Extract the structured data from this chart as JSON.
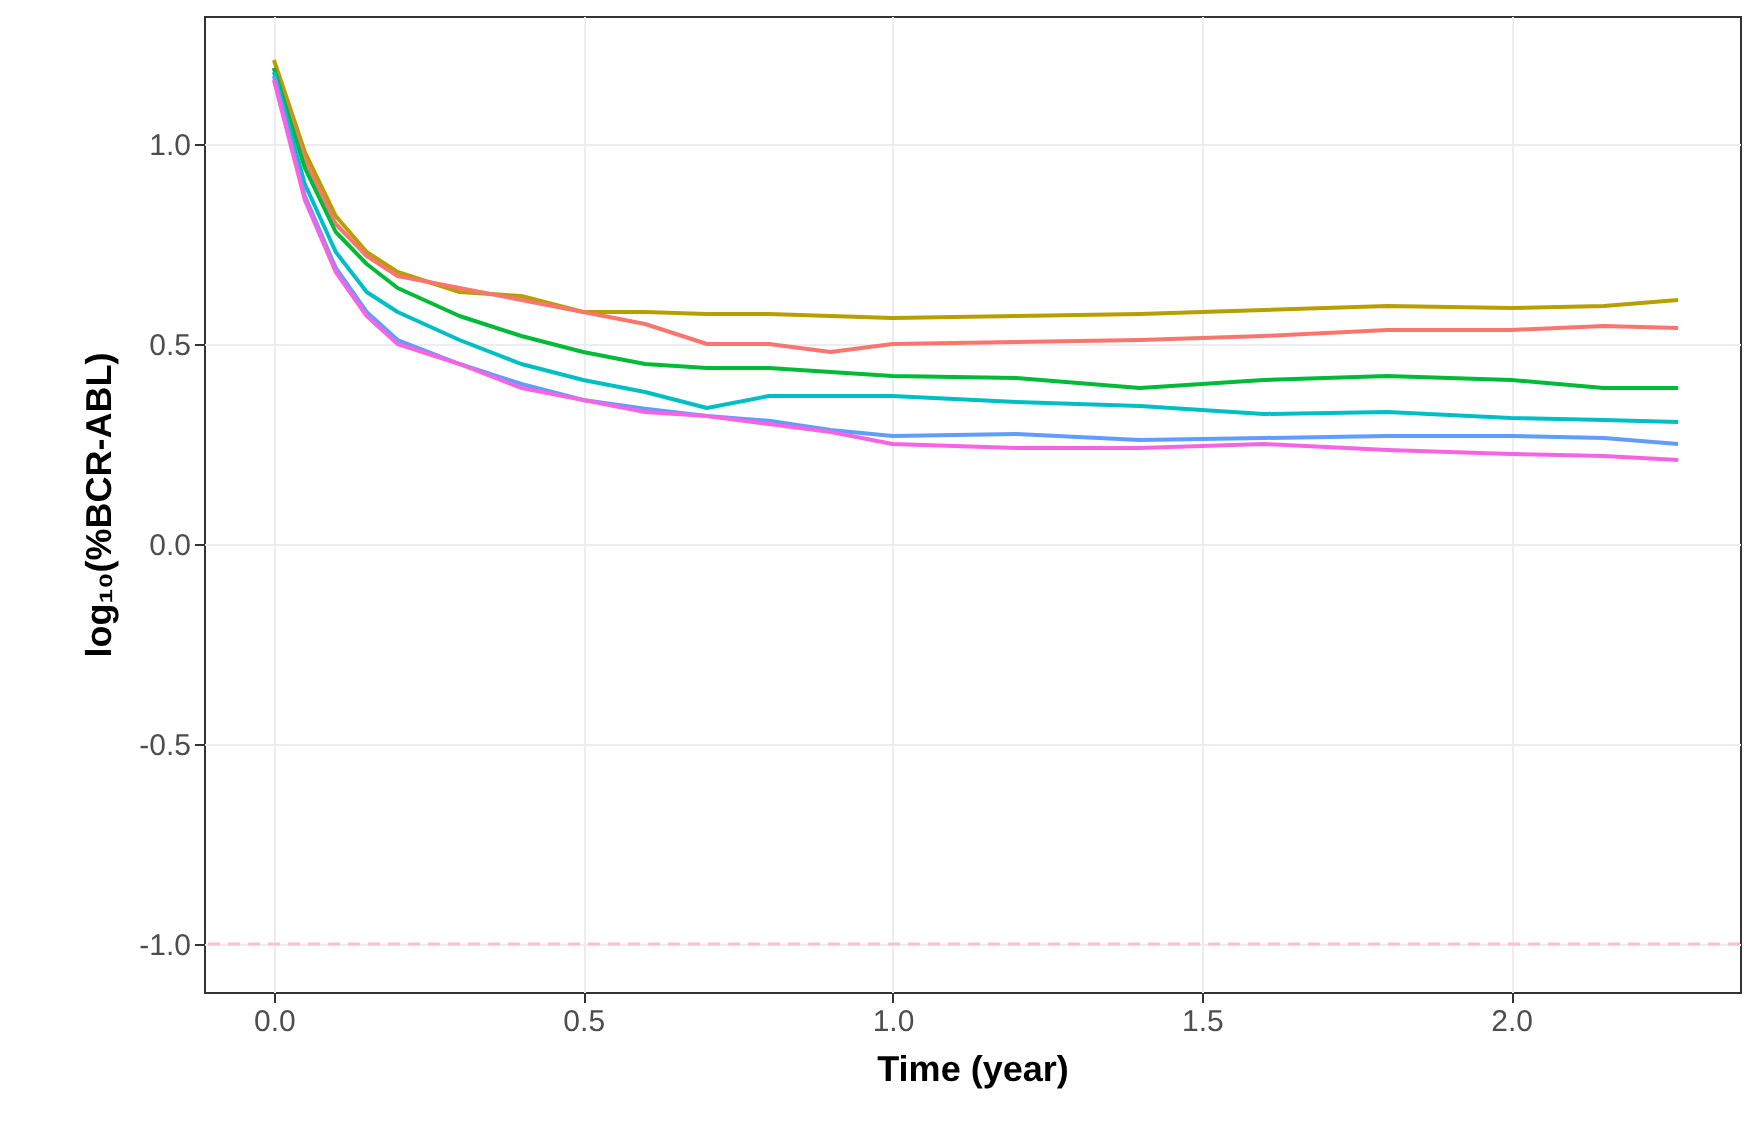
{
  "chart_data": {
    "type": "line",
    "xlabel": "Time (year)",
    "ylabel": "log₁₀(%BCR-ABL)",
    "x": [
      0,
      0.05,
      0.1,
      0.15,
      0.2,
      0.3,
      0.4,
      0.5,
      0.6,
      0.7,
      0.8,
      0.9,
      1.0,
      1.2,
      1.4,
      1.6,
      1.8,
      2.0,
      2.15,
      2.27
    ],
    "series": [
      {
        "color": "#b79f00",
        "values": [
          1.21,
          0.98,
          0.82,
          0.73,
          0.68,
          0.63,
          0.62,
          0.58,
          0.58,
          0.575,
          0.575,
          0.57,
          0.565,
          0.57,
          0.575,
          0.585,
          0.595,
          0.59,
          0.595,
          0.61
        ]
      },
      {
        "color": "#f8766d",
        "values": [
          1.19,
          0.96,
          0.8,
          0.72,
          0.67,
          0.64,
          0.61,
          0.58,
          0.55,
          0.5,
          0.5,
          0.48,
          0.5,
          0.505,
          0.51,
          0.52,
          0.535,
          0.535,
          0.545,
          0.54
        ]
      },
      {
        "color": "#00ba38",
        "values": [
          1.19,
          0.94,
          0.78,
          0.7,
          0.64,
          0.57,
          0.52,
          0.48,
          0.45,
          0.44,
          0.44,
          0.43,
          0.42,
          0.415,
          0.39,
          0.41,
          0.42,
          0.41,
          0.39,
          0.39
        ]
      },
      {
        "color": "#00bfc4",
        "values": [
          1.18,
          0.9,
          0.73,
          0.63,
          0.58,
          0.51,
          0.45,
          0.41,
          0.38,
          0.34,
          0.37,
          0.37,
          0.37,
          0.355,
          0.345,
          0.325,
          0.33,
          0.315,
          0.31,
          0.305
        ]
      },
      {
        "color": "#619cff",
        "values": [
          1.17,
          0.87,
          0.69,
          0.58,
          0.51,
          0.45,
          0.4,
          0.36,
          0.338,
          0.32,
          0.308,
          0.285,
          0.27,
          0.275,
          0.26,
          0.265,
          0.27,
          0.27,
          0.265,
          0.25
        ]
      },
      {
        "color": "#f564e3",
        "values": [
          1.16,
          0.86,
          0.68,
          0.57,
          0.5,
          0.45,
          0.39,
          0.36,
          0.33,
          0.32,
          0.3,
          0.28,
          0.25,
          0.24,
          0.24,
          0.25,
          0.235,
          0.225,
          0.22,
          0.21
        ]
      }
    ],
    "xlim": [
      -0.113,
      2.37
    ],
    "xticks": [
      {
        "value": 0,
        "label": "0.0"
      },
      {
        "value": 0.5,
        "label": "0.5"
      },
      {
        "value": 1,
        "label": "1.0"
      },
      {
        "value": 1.5,
        "label": "1.5"
      },
      {
        "value": 2,
        "label": "2.0"
      }
    ],
    "ylim": [
      -1.12,
      1.32
    ],
    "yticks": [
      {
        "value": -1,
        "label": "-1.0"
      },
      {
        "value": -0.5,
        "label": "-0.5"
      },
      {
        "value": 0,
        "label": "0.0"
      },
      {
        "value": 0.5,
        "label": "0.5"
      },
      {
        "value": 1,
        "label": "1.0"
      }
    ],
    "grid": true,
    "line_style": "solid",
    "ref_lines": [
      {
        "axis": "y",
        "value": -1,
        "color": "#ffc0cb",
        "line_style": "dashed"
      }
    ]
  }
}
